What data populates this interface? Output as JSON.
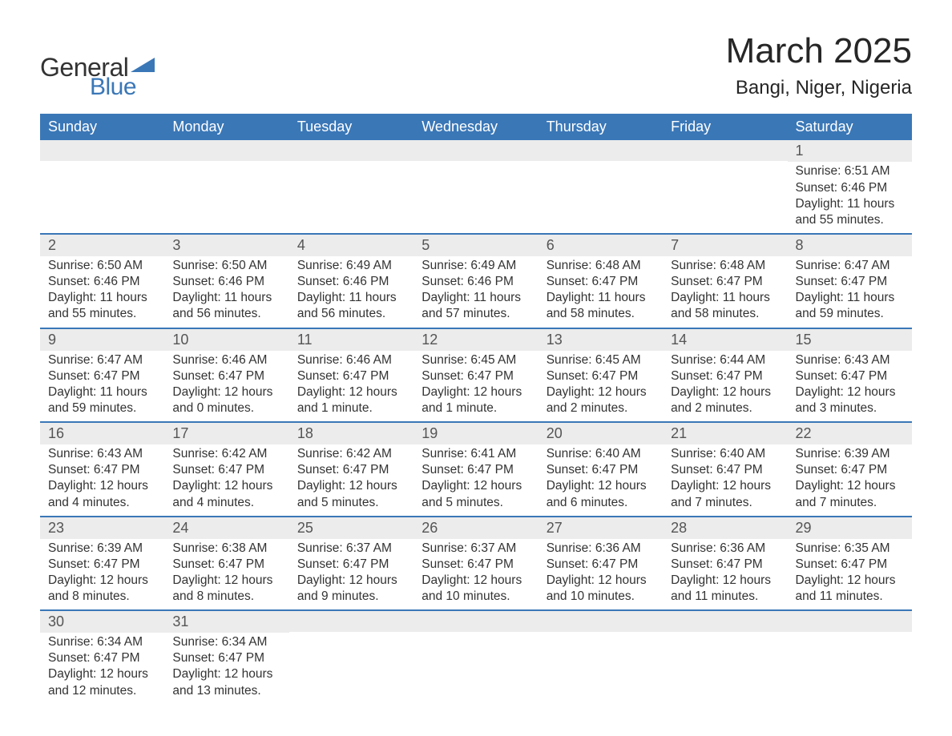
{
  "brand": {
    "word1": "General",
    "word2": "Blue",
    "accent_color": "#3a77b7"
  },
  "title": "March 2025",
  "location": "Bangi, Niger, Nigeria",
  "weekday_headers": [
    "Sunday",
    "Monday",
    "Tuesday",
    "Wednesday",
    "Thursday",
    "Friday",
    "Saturday"
  ],
  "header_bg": "#3a77b7",
  "header_fg": "#ffffff",
  "daynum_bg": "#ececec",
  "row_divider_color": "#3a77b7",
  "text_color": "#333333",
  "weeks": [
    [
      null,
      null,
      null,
      null,
      null,
      null,
      {
        "n": "1",
        "sunrise": "Sunrise: 6:51 AM",
        "sunset": "Sunset: 6:46 PM",
        "daylight1": "Daylight: 11 hours",
        "daylight2": "and 55 minutes."
      }
    ],
    [
      {
        "n": "2",
        "sunrise": "Sunrise: 6:50 AM",
        "sunset": "Sunset: 6:46 PM",
        "daylight1": "Daylight: 11 hours",
        "daylight2": "and 55 minutes."
      },
      {
        "n": "3",
        "sunrise": "Sunrise: 6:50 AM",
        "sunset": "Sunset: 6:46 PM",
        "daylight1": "Daylight: 11 hours",
        "daylight2": "and 56 minutes."
      },
      {
        "n": "4",
        "sunrise": "Sunrise: 6:49 AM",
        "sunset": "Sunset: 6:46 PM",
        "daylight1": "Daylight: 11 hours",
        "daylight2": "and 56 minutes."
      },
      {
        "n": "5",
        "sunrise": "Sunrise: 6:49 AM",
        "sunset": "Sunset: 6:46 PM",
        "daylight1": "Daylight: 11 hours",
        "daylight2": "and 57 minutes."
      },
      {
        "n": "6",
        "sunrise": "Sunrise: 6:48 AM",
        "sunset": "Sunset: 6:47 PM",
        "daylight1": "Daylight: 11 hours",
        "daylight2": "and 58 minutes."
      },
      {
        "n": "7",
        "sunrise": "Sunrise: 6:48 AM",
        "sunset": "Sunset: 6:47 PM",
        "daylight1": "Daylight: 11 hours",
        "daylight2": "and 58 minutes."
      },
      {
        "n": "8",
        "sunrise": "Sunrise: 6:47 AM",
        "sunset": "Sunset: 6:47 PM",
        "daylight1": "Daylight: 11 hours",
        "daylight2": "and 59 minutes."
      }
    ],
    [
      {
        "n": "9",
        "sunrise": "Sunrise: 6:47 AM",
        "sunset": "Sunset: 6:47 PM",
        "daylight1": "Daylight: 11 hours",
        "daylight2": "and 59 minutes."
      },
      {
        "n": "10",
        "sunrise": "Sunrise: 6:46 AM",
        "sunset": "Sunset: 6:47 PM",
        "daylight1": "Daylight: 12 hours",
        "daylight2": "and 0 minutes."
      },
      {
        "n": "11",
        "sunrise": "Sunrise: 6:46 AM",
        "sunset": "Sunset: 6:47 PM",
        "daylight1": "Daylight: 12 hours",
        "daylight2": "and 1 minute."
      },
      {
        "n": "12",
        "sunrise": "Sunrise: 6:45 AM",
        "sunset": "Sunset: 6:47 PM",
        "daylight1": "Daylight: 12 hours",
        "daylight2": "and 1 minute."
      },
      {
        "n": "13",
        "sunrise": "Sunrise: 6:45 AM",
        "sunset": "Sunset: 6:47 PM",
        "daylight1": "Daylight: 12 hours",
        "daylight2": "and 2 minutes."
      },
      {
        "n": "14",
        "sunrise": "Sunrise: 6:44 AM",
        "sunset": "Sunset: 6:47 PM",
        "daylight1": "Daylight: 12 hours",
        "daylight2": "and 2 minutes."
      },
      {
        "n": "15",
        "sunrise": "Sunrise: 6:43 AM",
        "sunset": "Sunset: 6:47 PM",
        "daylight1": "Daylight: 12 hours",
        "daylight2": "and 3 minutes."
      }
    ],
    [
      {
        "n": "16",
        "sunrise": "Sunrise: 6:43 AM",
        "sunset": "Sunset: 6:47 PM",
        "daylight1": "Daylight: 12 hours",
        "daylight2": "and 4 minutes."
      },
      {
        "n": "17",
        "sunrise": "Sunrise: 6:42 AM",
        "sunset": "Sunset: 6:47 PM",
        "daylight1": "Daylight: 12 hours",
        "daylight2": "and 4 minutes."
      },
      {
        "n": "18",
        "sunrise": "Sunrise: 6:42 AM",
        "sunset": "Sunset: 6:47 PM",
        "daylight1": "Daylight: 12 hours",
        "daylight2": "and 5 minutes."
      },
      {
        "n": "19",
        "sunrise": "Sunrise: 6:41 AM",
        "sunset": "Sunset: 6:47 PM",
        "daylight1": "Daylight: 12 hours",
        "daylight2": "and 5 minutes."
      },
      {
        "n": "20",
        "sunrise": "Sunrise: 6:40 AM",
        "sunset": "Sunset: 6:47 PM",
        "daylight1": "Daylight: 12 hours",
        "daylight2": "and 6 minutes."
      },
      {
        "n": "21",
        "sunrise": "Sunrise: 6:40 AM",
        "sunset": "Sunset: 6:47 PM",
        "daylight1": "Daylight: 12 hours",
        "daylight2": "and 7 minutes."
      },
      {
        "n": "22",
        "sunrise": "Sunrise: 6:39 AM",
        "sunset": "Sunset: 6:47 PM",
        "daylight1": "Daylight: 12 hours",
        "daylight2": "and 7 minutes."
      }
    ],
    [
      {
        "n": "23",
        "sunrise": "Sunrise: 6:39 AM",
        "sunset": "Sunset: 6:47 PM",
        "daylight1": "Daylight: 12 hours",
        "daylight2": "and 8 minutes."
      },
      {
        "n": "24",
        "sunrise": "Sunrise: 6:38 AM",
        "sunset": "Sunset: 6:47 PM",
        "daylight1": "Daylight: 12 hours",
        "daylight2": "and 8 minutes."
      },
      {
        "n": "25",
        "sunrise": "Sunrise: 6:37 AM",
        "sunset": "Sunset: 6:47 PM",
        "daylight1": "Daylight: 12 hours",
        "daylight2": "and 9 minutes."
      },
      {
        "n": "26",
        "sunrise": "Sunrise: 6:37 AM",
        "sunset": "Sunset: 6:47 PM",
        "daylight1": "Daylight: 12 hours",
        "daylight2": "and 10 minutes."
      },
      {
        "n": "27",
        "sunrise": "Sunrise: 6:36 AM",
        "sunset": "Sunset: 6:47 PM",
        "daylight1": "Daylight: 12 hours",
        "daylight2": "and 10 minutes."
      },
      {
        "n": "28",
        "sunrise": "Sunrise: 6:36 AM",
        "sunset": "Sunset: 6:47 PM",
        "daylight1": "Daylight: 12 hours",
        "daylight2": "and 11 minutes."
      },
      {
        "n": "29",
        "sunrise": "Sunrise: 6:35 AM",
        "sunset": "Sunset: 6:47 PM",
        "daylight1": "Daylight: 12 hours",
        "daylight2": "and 11 minutes."
      }
    ],
    [
      {
        "n": "30",
        "sunrise": "Sunrise: 6:34 AM",
        "sunset": "Sunset: 6:47 PM",
        "daylight1": "Daylight: 12 hours",
        "daylight2": "and 12 minutes."
      },
      {
        "n": "31",
        "sunrise": "Sunrise: 6:34 AM",
        "sunset": "Sunset: 6:47 PM",
        "daylight1": "Daylight: 12 hours",
        "daylight2": "and 13 minutes."
      },
      null,
      null,
      null,
      null,
      null
    ]
  ]
}
